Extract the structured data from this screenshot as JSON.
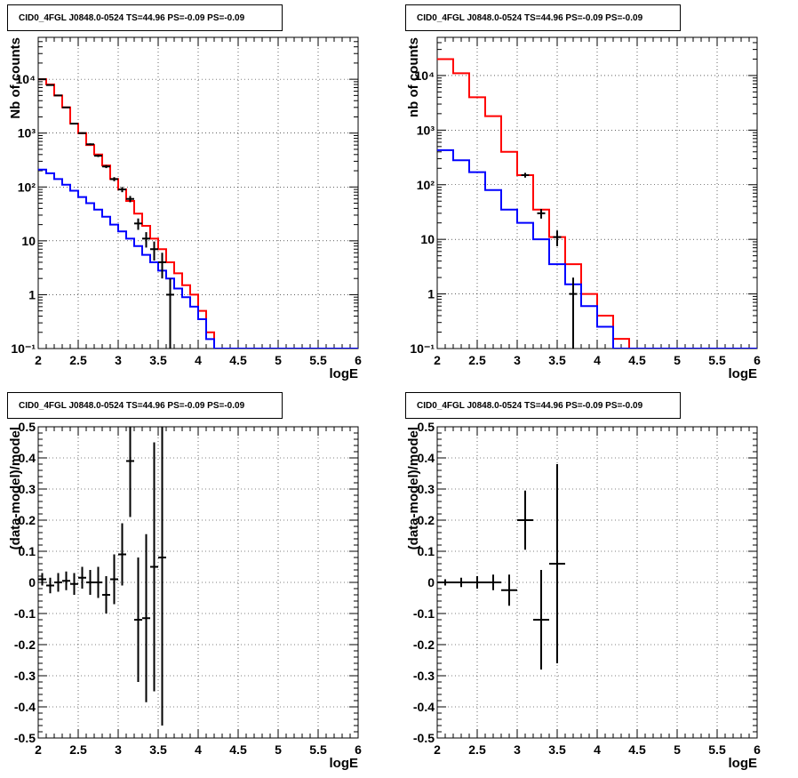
{
  "chart_data": [
    {
      "type": "histogram",
      "title": "CID0_4FGL J0848.0-0524 TS=44.96 PS=-0.09 PS=-0.09",
      "xlabel": "logE",
      "ylabel": "Nb of counts",
      "xlim": [
        2,
        6
      ],
      "ylim": [
        0.1,
        60000
      ],
      "ylog": true,
      "grid": true,
      "xticks": [
        "2",
        "2.5",
        "3",
        "3.5",
        "4",
        "4.5",
        "5",
        "5.5",
        "6"
      ],
      "yticks": [
        {
          "value": 0.1,
          "label": "10⁻¹"
        },
        {
          "value": 1,
          "label": "1"
        },
        {
          "value": 10,
          "label": "10"
        },
        {
          "value": 100,
          "label": "10²"
        },
        {
          "value": 1000,
          "label": "10³"
        },
        {
          "value": 10000,
          "label": "10⁴"
        }
      ],
      "bin_edges": [
        2.0,
        2.1,
        2.2,
        2.3,
        2.4,
        2.5,
        2.6,
        2.7,
        2.8,
        2.9,
        3.0,
        3.1,
        3.2,
        3.3,
        3.4,
        3.5,
        3.6,
        3.7,
        3.8,
        3.9,
        4.0,
        4.1,
        4.2,
        4.3,
        4.4,
        4.5,
        4.6,
        4.7,
        4.8,
        4.9,
        5.0,
        5.1,
        5.2,
        5.3,
        5.4,
        5.5,
        5.6,
        5.7,
        5.8,
        5.9,
        6.0
      ],
      "series": [
        {
          "color": "#ff0000",
          "values": [
            10000,
            8000,
            5000,
            3000,
            1500,
            1000,
            600,
            400,
            250,
            140,
            90,
            55,
            32,
            19,
            11,
            7,
            4,
            2.5,
            1.5,
            1,
            0.5,
            0.2,
            0.1,
            0.1,
            0.1,
            0.1,
            0.1,
            0.1,
            0.1,
            0.1,
            0.1,
            0.1,
            0.1,
            0.1,
            0.1,
            0.1,
            0.1,
            0.1,
            0.1,
            0.1
          ]
        },
        {
          "color": "#0000ff",
          "values": [
            210,
            180,
            140,
            110,
            85,
            65,
            50,
            38,
            28,
            20,
            15,
            11,
            8,
            5.5,
            4,
            2.8,
            2,
            1.3,
            0.9,
            0.6,
            0.35,
            0.15,
            0.1,
            0.1,
            0.1,
            0.1,
            0.1,
            0.1,
            0.1,
            0.1,
            0.1,
            0.1,
            0.1,
            0.1,
            0.1,
            0.1,
            0.1,
            0.1,
            0.1,
            0.1
          ]
        }
      ],
      "data_points": [
        {
          "x": 2.05,
          "y": 10000,
          "err": 100
        },
        {
          "x": 2.15,
          "y": 7800,
          "err": 90
        },
        {
          "x": 2.25,
          "y": 5000,
          "err": 70
        },
        {
          "x": 2.35,
          "y": 3000,
          "err": 55
        },
        {
          "x": 2.45,
          "y": 1500,
          "err": 40
        },
        {
          "x": 2.55,
          "y": 1000,
          "err": 32
        },
        {
          "x": 2.65,
          "y": 620,
          "err": 25
        },
        {
          "x": 2.75,
          "y": 380,
          "err": 20
        },
        {
          "x": 2.85,
          "y": 240,
          "err": 16
        },
        {
          "x": 2.95,
          "y": 140,
          "err": 12
        },
        {
          "x": 3.05,
          "y": 90,
          "err": 10
        },
        {
          "x": 3.15,
          "y": 60,
          "err": 8
        },
        {
          "x": 3.25,
          "y": 21,
          "err": 5
        },
        {
          "x": 3.35,
          "y": 11,
          "err": 3.5
        },
        {
          "x": 3.45,
          "y": 7,
          "err": 2.7
        },
        {
          "x": 3.55,
          "y": 4,
          "err": 2
        },
        {
          "x": 3.65,
          "y": 1,
          "err": 0.99
        }
      ]
    },
    {
      "type": "histogram",
      "title": "CID0_4FGL J0848.0-0524 TS=44.96 PS=-0.09 PS=-0.09",
      "xlabel": "logE",
      "ylabel": "nb of counts",
      "xlim": [
        2,
        6
      ],
      "ylim": [
        0.1,
        50000
      ],
      "ylog": true,
      "grid": true,
      "xticks": [
        "2",
        "2.5",
        "3",
        "3.5",
        "4",
        "4.5",
        "5",
        "5.5",
        "6"
      ],
      "yticks": [
        {
          "value": 0.1,
          "label": "10⁻¹"
        },
        {
          "value": 1,
          "label": "1"
        },
        {
          "value": 10,
          "label": "10"
        },
        {
          "value": 100,
          "label": "10²"
        },
        {
          "value": 1000,
          "label": "10³"
        },
        {
          "value": 10000,
          "label": "10⁴"
        }
      ],
      "bin_edges": [
        2.0,
        2.2,
        2.4,
        2.6,
        2.8,
        3.0,
        3.2,
        3.4,
        3.6,
        3.8,
        4.0,
        4.2,
        4.4,
        4.6,
        4.8,
        5.0,
        5.2,
        5.4,
        5.6,
        5.8,
        6.0
      ],
      "series": [
        {
          "color": "#ff0000",
          "values": [
            20000,
            11000,
            4000,
            1800,
            400,
            150,
            35,
            11,
            3.5,
            1,
            0.4,
            0.15,
            0.1,
            0.1,
            0.1,
            0.1,
            0.1,
            0.1,
            0.1,
            0.1
          ]
        },
        {
          "color": "#0000ff",
          "values": [
            430,
            280,
            170,
            80,
            35,
            20,
            10,
            3.5,
            1.5,
            0.6,
            0.25,
            0.1,
            0.1,
            0.1,
            0.1,
            0.1,
            0.1,
            0.1,
            0.1,
            0.1
          ]
        }
      ],
      "data_points": [
        {
          "x": 3.1,
          "y": 150,
          "err": 15
        },
        {
          "x": 3.3,
          "y": 30,
          "err": 6
        },
        {
          "x": 3.5,
          "y": 11,
          "err": 3.5
        },
        {
          "x": 3.7,
          "y": 1,
          "err": 0.99
        }
      ]
    },
    {
      "type": "scatter",
      "title": "CID0_4FGL J0848.0-0524 TS=44.96 PS=-0.09 PS=-0.09",
      "xlabel": "logE",
      "ylabel": "(data-model)/model",
      "xlim": [
        2,
        6
      ],
      "ylim": [
        -0.5,
        0.5
      ],
      "grid": true,
      "xticks": [
        "2",
        "2.5",
        "3",
        "3.5",
        "4",
        "4.5",
        "5",
        "5.5",
        "6"
      ],
      "yticks": [
        "-0.5",
        "-0.4",
        "-0.3",
        "-0.2",
        "-0.1",
        "0",
        "0.1",
        "0.2",
        "0.3",
        "0.4",
        "0.5"
      ],
      "xerr": 0.05,
      "points": [
        {
          "x": 2.05,
          "y": 0.01,
          "err": 0.02
        },
        {
          "x": 2.15,
          "y": -0.01,
          "err": 0.025
        },
        {
          "x": 2.25,
          "y": 0.0,
          "err": 0.03
        },
        {
          "x": 2.35,
          "y": 0.005,
          "err": 0.03
        },
        {
          "x": 2.45,
          "y": -0.005,
          "err": 0.035
        },
        {
          "x": 2.55,
          "y": 0.015,
          "err": 0.035
        },
        {
          "x": 2.65,
          "y": 0.0,
          "err": 0.04
        },
        {
          "x": 2.75,
          "y": 0.0,
          "err": 0.05
        },
        {
          "x": 2.85,
          "y": -0.04,
          "err": 0.06
        },
        {
          "x": 2.95,
          "y": 0.01,
          "err": 0.08
        },
        {
          "x": 3.05,
          "y": 0.09,
          "err": 0.1
        },
        {
          "x": 3.15,
          "y": 0.39,
          "err": 0.18
        },
        {
          "x": 3.25,
          "y": -0.12,
          "err": 0.2
        },
        {
          "x": 3.35,
          "y": -0.115,
          "err": 0.27
        },
        {
          "x": 3.45,
          "y": 0.05,
          "err": 0.4
        },
        {
          "x": 3.55,
          "y": 0.08,
          "err": 0.54
        }
      ]
    },
    {
      "type": "scatter",
      "title": "CID0_4FGL J0848.0-0524 TS=44.96 PS=-0.09 PS=-0.09",
      "xlabel": "logE",
      "ylabel": "(data-model)/model",
      "xlim": [
        2,
        6
      ],
      "ylim": [
        -0.5,
        0.5
      ],
      "grid": true,
      "xticks": [
        "2",
        "2.5",
        "3",
        "3.5",
        "4",
        "4.5",
        "5",
        "5.5",
        "6"
      ],
      "yticks": [
        "-0.5",
        "-0.4",
        "-0.3",
        "-0.2",
        "-0.1",
        "0",
        "0.1",
        "0.2",
        "0.3",
        "0.4",
        "0.5"
      ],
      "xerr": 0.1,
      "points": [
        {
          "x": 2.1,
          "y": 0.0,
          "err": 0.01
        },
        {
          "x": 2.3,
          "y": 0.0,
          "err": 0.015
        },
        {
          "x": 2.5,
          "y": 0.0,
          "err": 0.02
        },
        {
          "x": 2.7,
          "y": 0.0,
          "err": 0.025
        },
        {
          "x": 2.9,
          "y": -0.025,
          "err": 0.05
        },
        {
          "x": 3.1,
          "y": 0.2,
          "err": 0.095
        },
        {
          "x": 3.3,
          "y": -0.12,
          "err": 0.16
        },
        {
          "x": 3.5,
          "y": 0.06,
          "err": 0.32
        }
      ]
    }
  ]
}
